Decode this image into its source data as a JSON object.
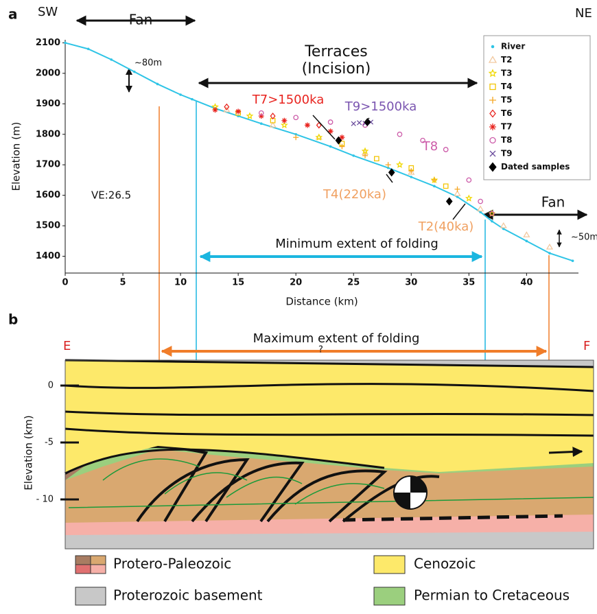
{
  "chart_data": {
    "type": "scatter",
    "panel_label": "a",
    "left_label": "SW",
    "right_label": "NE",
    "xlabel": "Distance (km)",
    "ylabel": "Elevation (m)",
    "xlim": [
      0,
      44.5
    ],
    "xticks": [
      0,
      5,
      10,
      15,
      20,
      25,
      30,
      35,
      40
    ],
    "ylim": [
      1345,
      2110
    ],
    "yticks": [
      1400,
      1500,
      1600,
      1700,
      1800,
      1900,
      2000,
      2100
    ],
    "series": [
      {
        "name": "River",
        "color": "#2ec4e6",
        "marker": "dot",
        "x": [
          0,
          2,
          4,
          6,
          8,
          10,
          11,
          13,
          15,
          17,
          20,
          23,
          25,
          28,
          30,
          32,
          34,
          36,
          37,
          38,
          40,
          42,
          44
        ],
        "values": [
          2100,
          2080,
          2045,
          2005,
          1965,
          1930,
          1915,
          1885,
          1860,
          1835,
          1800,
          1760,
          1730,
          1690,
          1660,
          1630,
          1595,
          1545,
          1515,
          1490,
          1450,
          1410,
          1385
        ]
      },
      {
        "name": "T2",
        "color": "#f2c9a0",
        "marker": "triangle",
        "x": [
          14,
          18,
          22,
          26,
          30,
          34,
          36,
          38,
          40,
          42
        ],
        "values": [
          1880,
          1830,
          1790,
          1740,
          1675,
          1605,
          1555,
          1500,
          1470,
          1430
        ]
      },
      {
        "name": "T3",
        "color": "#f0d800",
        "marker": "star",
        "x": [
          13,
          16,
          19,
          22,
          26,
          29,
          32,
          35,
          37
        ],
        "values": [
          1890,
          1860,
          1830,
          1790,
          1745,
          1700,
          1650,
          1590,
          1540
        ]
      },
      {
        "name": "T4",
        "color": "#f2c400",
        "marker": "square",
        "x": [
          15,
          18,
          24,
          27,
          30,
          33
        ],
        "values": [
          1870,
          1845,
          1770,
          1720,
          1690,
          1630
        ]
      },
      {
        "name": "T5",
        "color": "#f5a623",
        "marker": "plus",
        "x": [
          20,
          24,
          26,
          28,
          30,
          32,
          34
        ],
        "values": [
          1790,
          1760,
          1730,
          1700,
          1680,
          1650,
          1620
        ]
      },
      {
        "name": "T6",
        "color": "#e8231e",
        "marker": "diamond",
        "x": [
          14,
          18,
          22
        ],
        "values": [
          1890,
          1860,
          1830
        ]
      },
      {
        "name": "T7",
        "color": "#e8231e",
        "marker": "asterisk",
        "x": [
          13,
          15,
          17,
          19,
          21,
          23,
          24
        ],
        "values": [
          1880,
          1875,
          1860,
          1845,
          1830,
          1810,
          1790
        ]
      },
      {
        "name": "T8",
        "color": "#cc5aa8",
        "marker": "circle",
        "x": [
          17,
          20,
          23,
          26,
          29,
          31,
          33,
          35,
          36,
          37
        ],
        "values": [
          1870,
          1855,
          1840,
          1830,
          1800,
          1780,
          1750,
          1650,
          1580,
          1540
        ]
      },
      {
        "name": "T9",
        "color": "#6a4c9c",
        "marker": "cross",
        "x": [
          25,
          25.5,
          26,
          26.5
        ],
        "values": [
          1835,
          1838,
          1836,
          1840
        ]
      },
      {
        "name": "Dated samples",
        "color": "#000000",
        "marker": "fdiamond",
        "x": [
          23.7,
          26.2,
          28.3,
          33.3
        ],
        "values": [
          1780,
          1840,
          1675,
          1580
        ]
      }
    ],
    "annotations": [
      {
        "text": "Fan",
        "color": "#111111"
      },
      {
        "text": "Terraces",
        "color": "#111111"
      },
      {
        "text": "(Incision)",
        "color": "#111111"
      },
      {
        "text": "~80m",
        "color": "#111111"
      },
      {
        "text": "T7>1500ka",
        "color": "#e8231e"
      },
      {
        "text": "T9>1500ka",
        "color": "#7a55b0"
      },
      {
        "text": "T8",
        "color": "#cc5aa8"
      },
      {
        "text": "VE:26.5",
        "color": "#111111"
      },
      {
        "text": "T4(220ka)",
        "color": "#f0a060"
      },
      {
        "text": "T2(40ka)",
        "color": "#f0a060"
      },
      {
        "text": "Fan",
        "color": "#111111"
      },
      {
        "text": "~50m",
        "color": "#111111"
      },
      {
        "text": "Minimum extent of folding",
        "color": "#111111"
      }
    ]
  },
  "diagram": {
    "panel_label": "b",
    "left_label": "E",
    "right_label": "F",
    "extent_label": "Maximum extent of folding",
    "question": "?",
    "ylabel": "Elevation (km)",
    "yticks": [
      "0",
      "-5",
      "- 10"
    ],
    "legend": [
      "Protero-Paleozoic",
      "Cenozoic",
      "Proterozoic basement",
      "Permian to Cretaceous"
    ]
  }
}
